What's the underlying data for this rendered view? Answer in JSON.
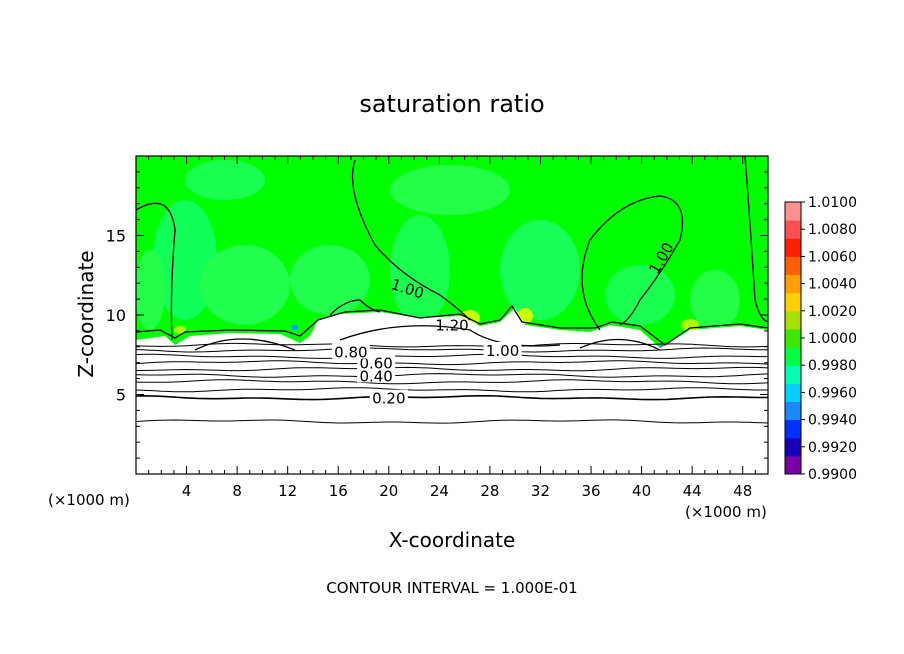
{
  "chart_data": {
    "type": "heatmap",
    "title": "saturation ratio",
    "xlabel": "X-coordinate",
    "ylabel": "Z-coordinate",
    "x_unit_left": "(×1000 m)",
    "x_unit_right": "(×1000 m)",
    "xlim": [
      0,
      50
    ],
    "ylim": [
      0,
      20
    ],
    "x_ticks": [
      4,
      8,
      12,
      16,
      20,
      24,
      28,
      32,
      36,
      40,
      44,
      48
    ],
    "y_ticks": [
      5,
      10,
      15
    ],
    "footer": "CONTOUR INTERVAL = 1.000E-01",
    "colorbar": {
      "min": 0.99,
      "max": 1.01,
      "labels": [
        "1.0100",
        "1.0080",
        "1.0060",
        "1.0040",
        "1.0020",
        "1.0000",
        "0.9980",
        "0.9960",
        "0.9940",
        "0.9920",
        "0.9900"
      ],
      "colors": [
        "#7b00a8",
        "#1a00b8",
        "#0030ff",
        "#1a88ff",
        "#00d0ff",
        "#00ffb0",
        "#00ff40",
        "#3ce800",
        "#a8e000",
        "#ffd000",
        "#ffa000",
        "#ff6000",
        "#ff2000",
        "#ff5050",
        "#ff9090"
      ]
    },
    "field": {
      "background": "#00ff00",
      "cloud_top_z": 9.0,
      "dry_layer_color": "#ffffff"
    },
    "contours": {
      "horizontal_levels_z": [
        3.3,
        4.8,
        5.3,
        5.8,
        6.2,
        6.6,
        7.0,
        7.4,
        7.8,
        8.1
      ],
      "labels": [
        {
          "text": "0.20",
          "x": 20.0,
          "z": 4.8
        },
        {
          "text": "0.40",
          "x": 19.0,
          "z": 6.2
        },
        {
          "text": "0.60",
          "x": 19.0,
          "z": 7.0
        },
        {
          "text": "0.80",
          "x": 17.0,
          "z": 7.7
        },
        {
          "text": "1.00",
          "x": 21.5,
          "z": 11.7
        },
        {
          "text": "1.00",
          "x": 41.5,
          "z": 13.6
        },
        {
          "text": "1.00",
          "x": 29.0,
          "z": 7.8
        },
        {
          "text": "1.20",
          "x": 25.0,
          "z": 9.4
        }
      ]
    }
  }
}
